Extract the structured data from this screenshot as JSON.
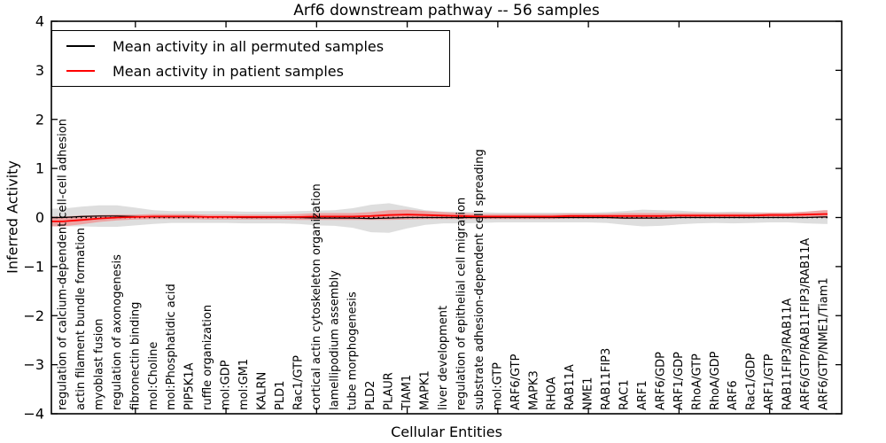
{
  "title": "Arf6 downstream pathway -- 56 samples",
  "legend": {
    "items": [
      {
        "label": "Mean activity in all permuted samples",
        "color": "#000000"
      },
      {
        "label": "Mean activity in patient samples",
        "color": "#ff0000"
      }
    ]
  },
  "axes": {
    "xlabel": "Cellular Entities",
    "ylabel": "Inferred Activity",
    "yticks": [
      4,
      3,
      2,
      1,
      0,
      -1,
      -2,
      -3,
      -4
    ],
    "ylim": [
      -4,
      4
    ]
  },
  "colors": {
    "permuted_line": "#000000",
    "patient_line": "#ff0000",
    "permuted_band": "#bdbdbd",
    "patient_band": "#ff5a5a",
    "zero_line": "#000000"
  },
  "chart_data": {
    "type": "line",
    "title": "Arf6 downstream pathway -- 56 samples",
    "xlabel": "Cellular Entities",
    "ylabel": "Inferred Activity",
    "ylim": [
      -4,
      4
    ],
    "grid": false,
    "legend_position": "upper left",
    "zero_line_style": "dotted",
    "categories": [
      "regulation of calcium-dependent cell-cell adhesion",
      "actin filament bundle formation",
      "myoblast fusion",
      "regulation of axonogenesis",
      "fibronectin binding",
      "mol:Choline",
      "mol:Phosphatidic acid",
      "PIP5K1A",
      "ruffle organization",
      "mol:GDP",
      "mol:GM1",
      "KALRN",
      "PLD1",
      "Rac1/GTP",
      "cortical actin cytoskeleton organization",
      "lamellipodium assembly",
      "tube morphogenesis",
      "PLD2",
      "PLAUR",
      "TIAM1",
      "MAPK1",
      "liver development",
      "regulation of epithelial cell migration",
      "substrate adhesion-dependent cell spreading",
      "mol:GTP",
      "ARF6/GTP",
      "MAPK3",
      "RHOA",
      "RAB11A",
      "NME1",
      "RAB11FIP3",
      "RAC1",
      "ARF1",
      "ARF6/GDP",
      "ARF1/GDP",
      "RhoA/GTP",
      "RhoA/GDP",
      "ARF6",
      "Rac1/GDP",
      "ARF1/GTP",
      "RAB11FIP3/RAB11A",
      "ARF6/GTP/RAB11FIP3/RAB11A",
      "ARF6/GTP/NME1/Tiam1"
    ],
    "series": [
      {
        "name": "Mean activity in all permuted samples",
        "color": "#000000",
        "values": [
          0.0,
          0.02,
          0.03,
          0.03,
          0.02,
          0.01,
          0.01,
          0.01,
          0.01,
          0.01,
          0.0,
          0.0,
          0.0,
          0.0,
          -0.01,
          -0.01,
          -0.01,
          -0.02,
          -0.01,
          0.0,
          0.0,
          0.0,
          0.0,
          0.0,
          0.0,
          0.0,
          0.0,
          0.0,
          0.0,
          0.0,
          0.0,
          -0.01,
          -0.01,
          -0.01,
          0.0,
          0.0,
          0.0,
          0.0,
          0.0,
          0.0,
          0.0,
          0.0,
          0.01
        ]
      },
      {
        "name": "Mean activity in patient samples",
        "color": "#ff0000",
        "values": [
          -0.08,
          -0.05,
          -0.02,
          0.0,
          0.01,
          0.02,
          0.02,
          0.02,
          0.01,
          0.01,
          0.01,
          0.01,
          0.01,
          0.01,
          0.02,
          0.02,
          0.02,
          0.03,
          0.05,
          0.06,
          0.05,
          0.04,
          0.03,
          0.02,
          0.02,
          0.02,
          0.02,
          0.02,
          0.03,
          0.03,
          0.03,
          0.03,
          0.03,
          0.03,
          0.04,
          0.04,
          0.04,
          0.04,
          0.04,
          0.05,
          0.05,
          0.06,
          0.07
        ]
      }
    ],
    "bands": [
      {
        "name": "permuted range",
        "color": "#bdbdbd",
        "opacity": 0.5,
        "center_series": 0,
        "halfwidths": [
          0.18,
          0.2,
          0.22,
          0.22,
          0.18,
          0.14,
          0.12,
          0.12,
          0.12,
          0.12,
          0.12,
          0.12,
          0.12,
          0.13,
          0.15,
          0.16,
          0.2,
          0.28,
          0.3,
          0.22,
          0.15,
          0.12,
          0.12,
          0.11,
          0.1,
          0.1,
          0.1,
          0.1,
          0.1,
          0.1,
          0.11,
          0.14,
          0.17,
          0.16,
          0.14,
          0.12,
          0.11,
          0.12,
          0.11,
          0.1,
          0.1,
          0.12,
          0.14
        ]
      },
      {
        "name": "patient range",
        "color": "#ff5a5a",
        "opacity": 0.45,
        "center_series": 1,
        "halfwidths": [
          0.1,
          0.09,
          0.07,
          0.06,
          0.05,
          0.05,
          0.05,
          0.05,
          0.05,
          0.05,
          0.05,
          0.05,
          0.05,
          0.06,
          0.07,
          0.07,
          0.07,
          0.08,
          0.1,
          0.1,
          0.08,
          0.07,
          0.06,
          0.05,
          0.05,
          0.05,
          0.05,
          0.05,
          0.05,
          0.05,
          0.05,
          0.06,
          0.06,
          0.06,
          0.05,
          0.05,
          0.05,
          0.05,
          0.05,
          0.05,
          0.05,
          0.06,
          0.08
        ]
      }
    ]
  }
}
